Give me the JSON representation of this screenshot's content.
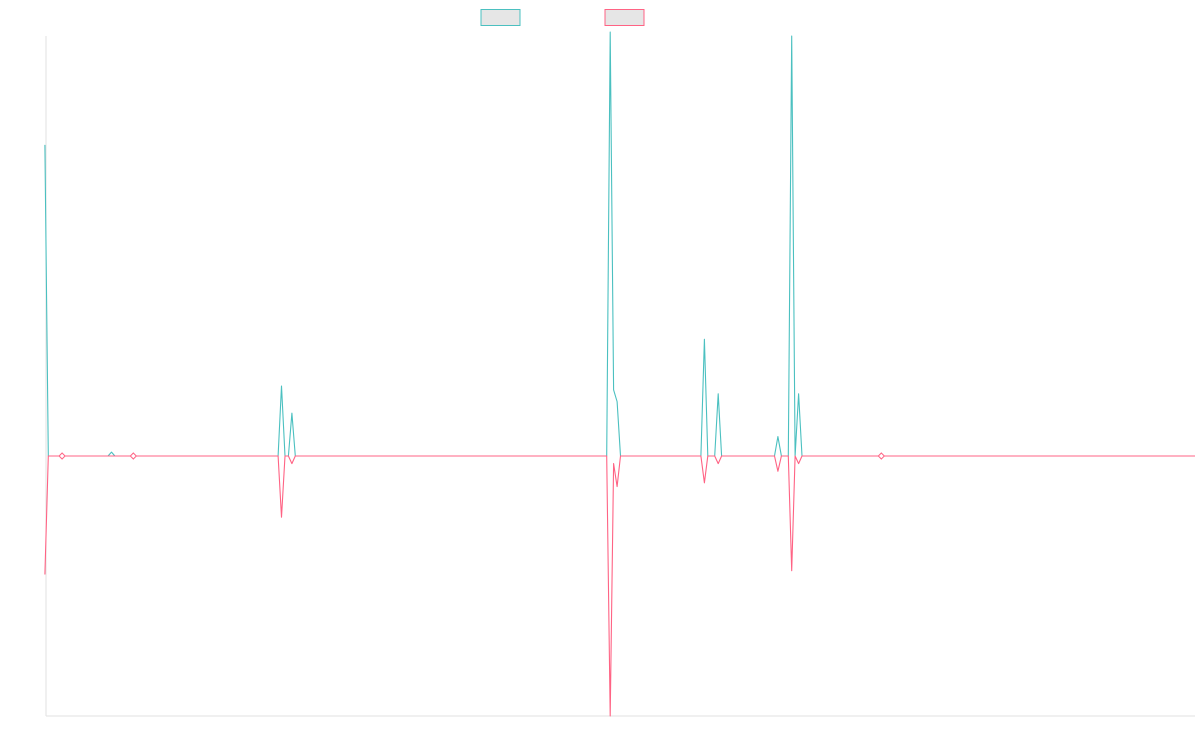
{
  "chart_data": {
    "type": "line",
    "title": "",
    "xlabel": "",
    "ylabel": "",
    "grid": false,
    "legend": "top-center",
    "colors": {
      "series_a": "#4bc0c0",
      "series_b": "#ff6384",
      "legend_fill": "#e6e6e6",
      "axis": "#e2e2e2"
    },
    "xlim": [
      0,
      100
    ],
    "ylim": [
      -1,
      1
    ],
    "series": [
      {
        "key": "a",
        "color": "#4bc0c0",
        "points": [
          [
            -0.1,
            0.8
          ],
          [
            0.2,
            0
          ],
          [
            1.4,
            0
          ],
          [
            5.4,
            0
          ],
          [
            5.7,
            0.01
          ],
          [
            6.0,
            0
          ],
          [
            7.6,
            0
          ],
          [
            20.2,
            0
          ],
          [
            20.5,
            0.18
          ],
          [
            20.8,
            0
          ],
          [
            21.1,
            0
          ],
          [
            21.4,
            0.11
          ],
          [
            21.7,
            0
          ],
          [
            48.8,
            0
          ],
          [
            49.1,
            1.09
          ],
          [
            49.4,
            0.17
          ],
          [
            49.7,
            0.14
          ],
          [
            50.0,
            0
          ],
          [
            56.0,
            0
          ],
          [
            57.0,
            0
          ],
          [
            57.3,
            0.3
          ],
          [
            57.6,
            0
          ],
          [
            58.2,
            0
          ],
          [
            58.5,
            0.16
          ],
          [
            58.8,
            0
          ],
          [
            63.4,
            0
          ],
          [
            63.7,
            0.05
          ],
          [
            64.0,
            0
          ],
          [
            64.6,
            0
          ],
          [
            64.9,
            1.08
          ],
          [
            65.2,
            0
          ],
          [
            65.5,
            0.16
          ],
          [
            65.8,
            0
          ],
          [
            72.7,
            0
          ],
          [
            100,
            0
          ]
        ]
      },
      {
        "key": "b",
        "color": "#ff6384",
        "points": [
          [
            -0.1,
            -0.31
          ],
          [
            0.2,
            0
          ],
          [
            1.4,
            0
          ],
          [
            5.4,
            0
          ],
          [
            6.0,
            0
          ],
          [
            7.6,
            0
          ],
          [
            20.2,
            0
          ],
          [
            20.5,
            -0.16
          ],
          [
            20.8,
            0
          ],
          [
            21.1,
            0
          ],
          [
            21.4,
            -0.02
          ],
          [
            21.7,
            0
          ],
          [
            48.8,
            0
          ],
          [
            49.1,
            -0.68
          ],
          [
            49.4,
            -0.02
          ],
          [
            49.7,
            -0.08
          ],
          [
            50.0,
            0
          ],
          [
            56.0,
            0
          ],
          [
            57.0,
            0
          ],
          [
            57.3,
            -0.07
          ],
          [
            57.6,
            0
          ],
          [
            58.2,
            0
          ],
          [
            58.5,
            -0.02
          ],
          [
            58.8,
            0
          ],
          [
            63.4,
            0
          ],
          [
            63.7,
            -0.04
          ],
          [
            64.0,
            0
          ],
          [
            64.6,
            0
          ],
          [
            64.9,
            -0.3
          ],
          [
            65.2,
            0
          ],
          [
            65.5,
            -0.02
          ],
          [
            65.8,
            0
          ],
          [
            72.7,
            0
          ],
          [
            100,
            0
          ]
        ]
      }
    ],
    "markers": [
      {
        "x": 1.4,
        "y": 0,
        "series": "b"
      },
      {
        "x": 7.6,
        "y": 0,
        "series": "b"
      },
      {
        "x": 72.7,
        "y": 0,
        "series": "b"
      }
    ]
  }
}
